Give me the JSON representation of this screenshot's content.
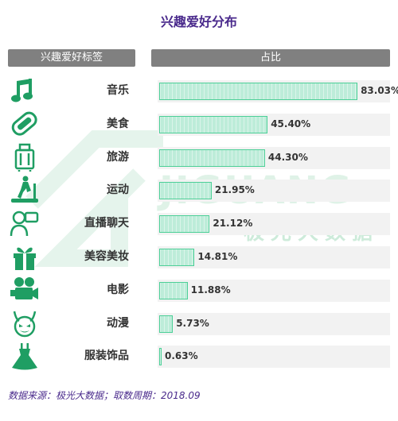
{
  "title": "兴趣爱好分布",
  "header": {
    "left": "兴趣爱好标签",
    "right": "占比"
  },
  "watermark": {
    "brand": "JIGUANG",
    "sub": "极光大数据"
  },
  "source": "数据来源：极光大数据；取数周期：2018.09",
  "colors": {
    "bar_fill": "#bdecd9",
    "bar_border": "#4ccf97",
    "icon": "#1f9e63",
    "title": "#4a2a8c"
  },
  "chart_data": {
    "type": "bar",
    "orientation": "horizontal",
    "title": "兴趣爱好分布",
    "xlabel": "占比",
    "ylabel": "兴趣爱好标签",
    "xlim": [
      0,
      100
    ],
    "categories": [
      "音乐",
      "美食",
      "旅游",
      "运动",
      "直播聊天",
      "美容美妆",
      "电影",
      "动漫",
      "服装饰品"
    ],
    "values": [
      83.03,
      45.4,
      44.3,
      21.95,
      21.12,
      14.81,
      11.88,
      5.73,
      0.63
    ],
    "value_labels": [
      "83.03%",
      "45.40%",
      "44.30%",
      "21.95%",
      "21.12%",
      "14.81%",
      "11.88%",
      "5.73%",
      "0.63%"
    ],
    "icons": [
      "music-icon",
      "food-icon",
      "luggage-icon",
      "treadmill-icon",
      "live-chat-icon",
      "gift-icon",
      "movie-camera-icon",
      "devil-mask-icon",
      "dress-icon"
    ]
  }
}
